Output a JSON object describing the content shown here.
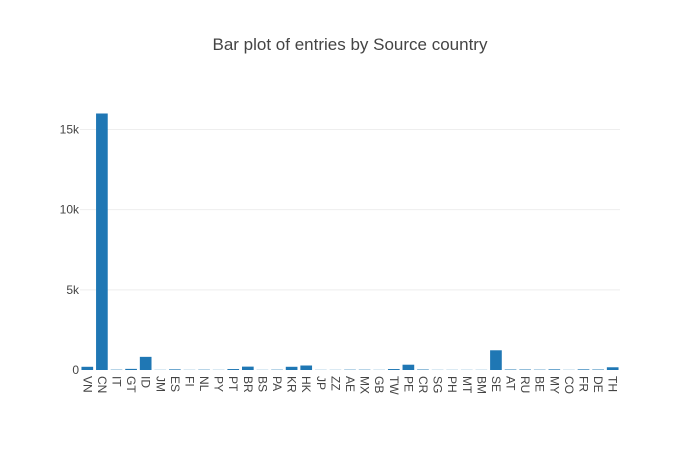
{
  "chart_data": {
    "type": "bar",
    "title": "Bar plot of entries by Source country",
    "xlabel": "",
    "ylabel": "",
    "categories": [
      "VN",
      "CN",
      "IT",
      "GT",
      "ID",
      "JM",
      "ES",
      "FI",
      "NL",
      "PY",
      "PT",
      "BR",
      "BS",
      "PA",
      "KR",
      "HK",
      "JP",
      "ZZ",
      "AE",
      "MX",
      "GB",
      "TW",
      "PE",
      "CR",
      "SG",
      "PH",
      "MT",
      "BM",
      "SE",
      "AT",
      "RU",
      "BE",
      "MY",
      "CO",
      "FR",
      "DE",
      "TH"
    ],
    "values": [
      200,
      16000,
      20,
      70,
      820,
      10,
      40,
      10,
      20,
      10,
      60,
      210,
      10,
      20,
      200,
      280,
      10,
      10,
      20,
      20,
      10,
      60,
      330,
      30,
      10,
      10,
      10,
      10,
      1230,
      30,
      30,
      20,
      40,
      10,
      40,
      30,
      170
    ],
    "ylim": [
      0,
      16842
    ],
    "yticks": [
      0,
      5000,
      10000,
      15000
    ],
    "ytick_labels": [
      "0",
      "5k",
      "10k",
      "15k"
    ],
    "grid": true,
    "bar_color": "#1f77b4",
    "grid_color": "#eeeeee",
    "text_color": "#444444"
  }
}
